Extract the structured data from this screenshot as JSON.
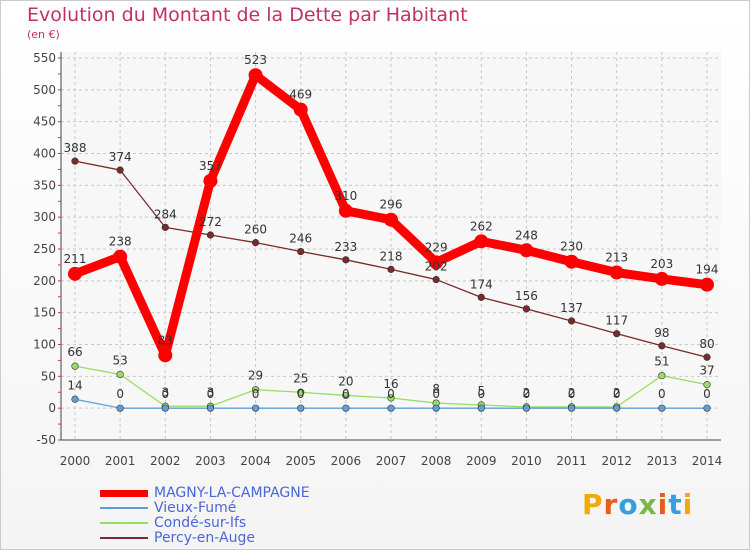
{
  "title": "Evolution du Montant de la Dette par Habitant",
  "subtitle": "(en €)",
  "logo": {
    "text": "Proxiti",
    "letter_colors": [
      "#f5a800",
      "#e85d1c",
      "#35a0e0",
      "#7ab648",
      "#e85d1c",
      "#35a0e0",
      "#f5a800"
    ]
  },
  "chart_data": {
    "type": "line",
    "title": "Evolution du Montant de la Dette par Habitant",
    "subtitle": "(en €)",
    "x": [
      "2000",
      "2001",
      "2002",
      "2003",
      "2004",
      "2005",
      "2006",
      "2007",
      "2008",
      "2009",
      "2010",
      "2011",
      "2012",
      "2013",
      "2014"
    ],
    "ylim": [
      -50,
      550
    ],
    "yticks": [
      -50,
      0,
      50,
      100,
      150,
      200,
      250,
      300,
      350,
      400,
      450,
      500,
      550
    ],
    "grid": true,
    "legend_position": "bottom-left",
    "series": [
      {
        "name": "MAGNY-LA-CAMPAGNE",
        "color": "#ff0000",
        "values": [
          211,
          238,
          83,
          357,
          523,
          469,
          310,
          296,
          229,
          262,
          248,
          230,
          213,
          203,
          194
        ],
        "labels": [
          "211",
          "238",
          "83",
          "357",
          "523",
          "469",
          "310",
          "296",
          "229",
          "262",
          "248",
          "230",
          "213",
          "203",
          "194"
        ]
      },
      {
        "name": "Vieux-Fumé",
        "color": "#5f9fd8",
        "values": [
          14,
          0,
          0,
          0,
          0,
          0,
          0,
          0,
          0,
          0,
          0,
          0,
          0,
          0,
          0
        ],
        "labels": [
          "14",
          "0",
          "0",
          "0",
          "0",
          "0",
          "0",
          "0",
          "0",
          "0",
          "0",
          "0",
          "0",
          "0",
          "0"
        ]
      },
      {
        "name": "Condé-sur-Ifs",
        "color": "#99dd66",
        "values": [
          66,
          53,
          3,
          3,
          29,
          25,
          20,
          16,
          8,
          5,
          2,
          2,
          2,
          51,
          37
        ],
        "labels": [
          "66",
          "53",
          "3",
          "3",
          "29",
          "25",
          "20",
          "16",
          "8",
          "5",
          "2",
          "2",
          "2",
          "51",
          "37"
        ]
      },
      {
        "name": "Percy-en-Auge",
        "color": "#7a2a2a",
        "values": [
          388,
          374,
          284,
          272,
          260,
          246,
          233,
          218,
          202,
          174,
          156,
          137,
          117,
          98,
          80
        ],
        "labels": [
          "388",
          "374",
          "284",
          "272",
          "260",
          "246",
          "233",
          "218",
          "202",
          "174",
          "156",
          "137",
          "117",
          "98",
          "80"
        ]
      }
    ]
  }
}
